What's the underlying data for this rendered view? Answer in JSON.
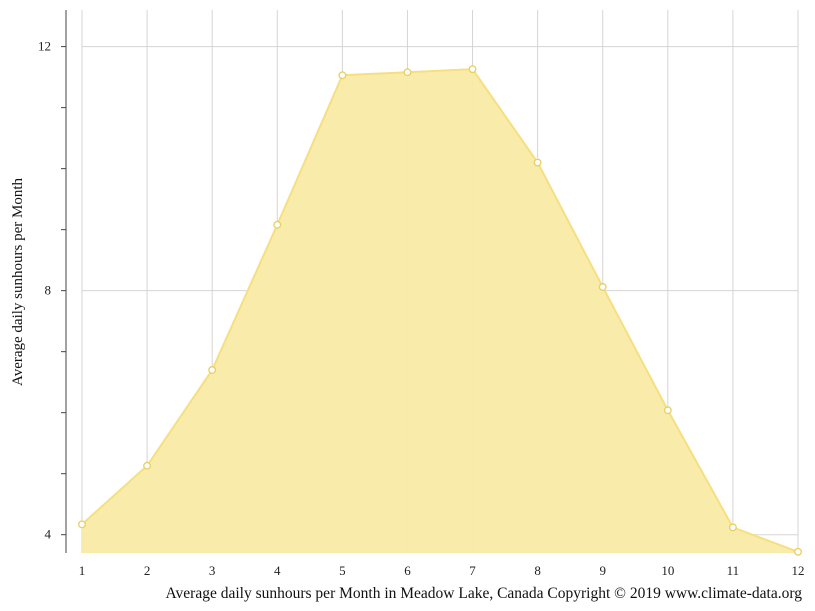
{
  "chart_data": {
    "type": "area",
    "title": "",
    "xlabel": "",
    "ylabel": "Average daily sunhours per Month",
    "caption": "Average daily sunhours per Month in Meadow Lake, Canada Copyright © 2019 www.climate-data.org",
    "x": [
      1,
      2,
      3,
      4,
      5,
      6,
      7,
      8,
      9,
      10,
      11,
      12
    ],
    "x_tick_labels": [
      "1",
      "2",
      "3",
      "4",
      "5",
      "6",
      "7",
      "8",
      "9",
      "10",
      "11",
      "12"
    ],
    "y_tick_labels": [
      "12",
      "8",
      "4"
    ],
    "y_ticks": [
      12,
      8,
      4
    ],
    "y_minor_step": 1,
    "xlim": [
      1,
      12
    ],
    "ylim": [
      3.7,
      12.6
    ],
    "grid": true,
    "legend": "none",
    "series": [
      {
        "values": [
          4.17,
          5.13,
          6.7,
          9.08,
          11.53,
          11.58,
          11.63,
          10.1,
          8.06,
          6.04,
          4.12,
          3.72
        ]
      }
    ],
    "colors": {
      "fill": "#f9eba5",
      "line": "#f5df80",
      "marker_stroke": "#e8cf5e",
      "grid": "#d5d5d5",
      "axis": "#444444"
    }
  }
}
